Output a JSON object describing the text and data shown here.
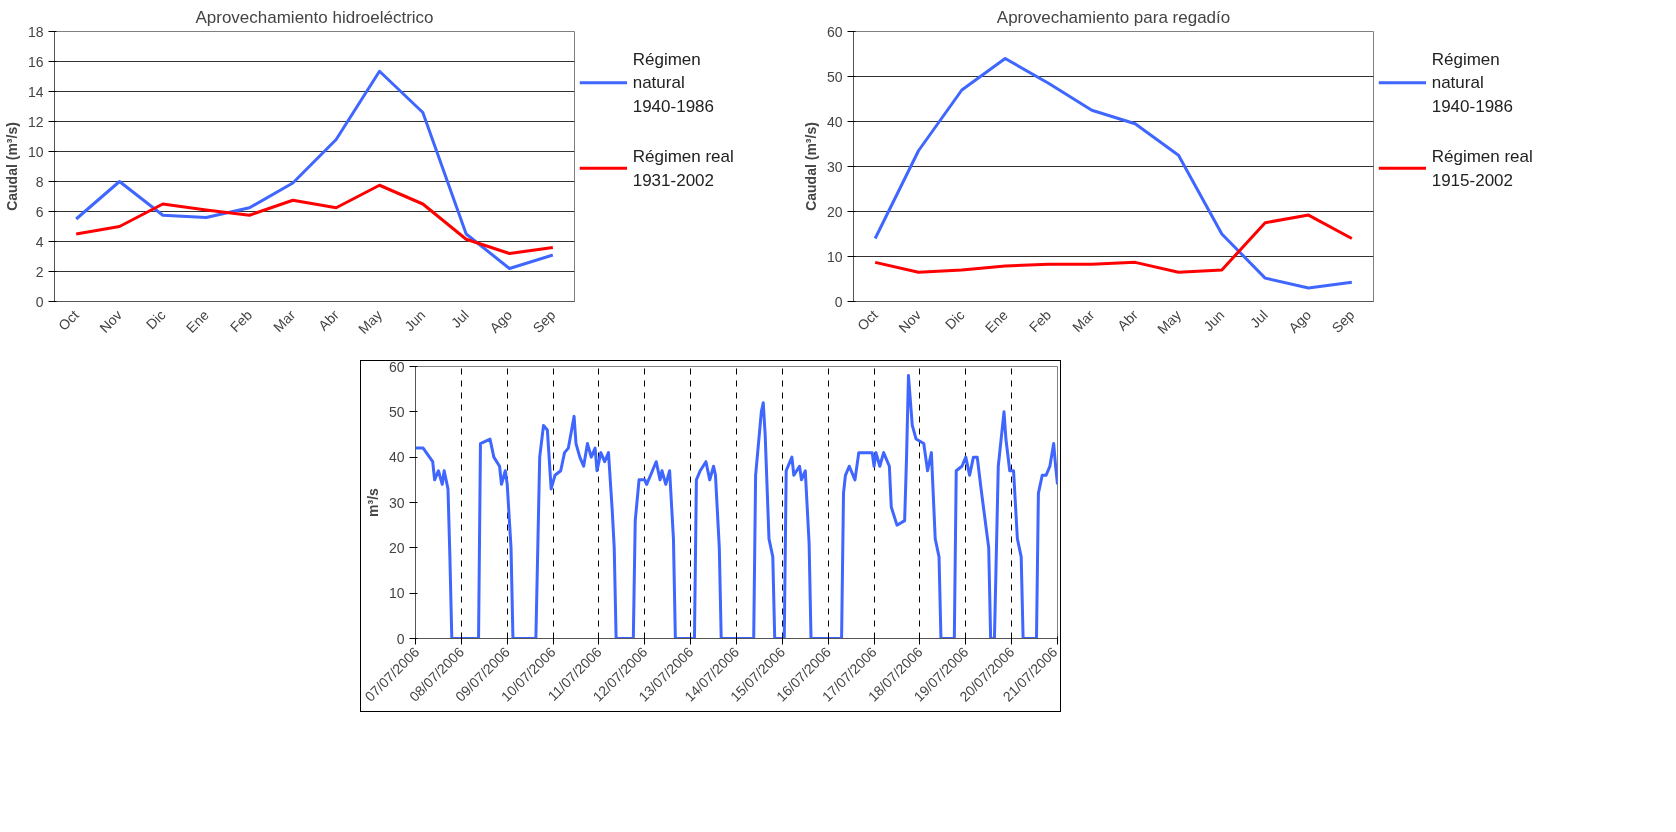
{
  "chart_data": [
    {
      "type": "line",
      "title": "Aprovechamiento hidroeléctrico",
      "ylabel": "Caudal (m³/s)",
      "categories": [
        "Oct",
        "Nov",
        "Dic",
        "Ene",
        "Feb",
        "Mar",
        "Abr",
        "May",
        "Jun",
        "Jul",
        "Ago",
        "Sep"
      ],
      "ylim": [
        0,
        18
      ],
      "yticks": [
        0,
        2,
        4,
        6,
        8,
        10,
        12,
        14,
        16,
        18
      ],
      "grid": "y",
      "legend": "right",
      "marker": "none",
      "line_style": "solid",
      "series": [
        {
          "name": "Régimen natural 1940-1986",
          "color": "#3f66ff",
          "values": [
            5.5,
            8.0,
            5.75,
            5.6,
            6.25,
            7.9,
            10.8,
            15.35,
            12.6,
            4.5,
            2.2,
            3.1
          ]
        },
        {
          "name": "Régimen real 1931-2002",
          "color": "#ff0000",
          "values": [
            4.5,
            5.0,
            6.5,
            6.1,
            5.75,
            6.75,
            6.25,
            7.75,
            6.5,
            4.15,
            3.2,
            3.6
          ]
        }
      ]
    },
    {
      "type": "line",
      "title": "Aprovechamiento para regadío",
      "ylabel": "Caudal (m³/s)",
      "categories": [
        "Oct",
        "Nov",
        "Dic",
        "Ene",
        "Feb",
        "Mar",
        "Abr",
        "May",
        "Jun",
        "Jul",
        "Ago",
        "Sep"
      ],
      "ylim": [
        0,
        60
      ],
      "yticks": [
        0,
        10,
        20,
        30,
        40,
        50,
        60
      ],
      "grid": "y",
      "legend": "right",
      "marker": "none",
      "line_style": "solid",
      "series": [
        {
          "name": "Régimen natural 1940-1986",
          "color": "#3f66ff",
          "values": [
            14,
            33.5,
            47,
            54,
            48.5,
            42.5,
            39.5,
            32.5,
            15,
            5.2,
            3,
            4.3
          ]
        },
        {
          "name": "Régimen real 1915-2002",
          "color": "#ff0000",
          "values": [
            8.7,
            6.5,
            7,
            7.9,
            8.3,
            8.3,
            8.7,
            6.5,
            7,
            17.5,
            19.2,
            14
          ]
        }
      ]
    },
    {
      "type": "line",
      "ylabel": "m³/s",
      "xlim": [
        "2006-07-07",
        "2006-07-21"
      ],
      "ylim": [
        0,
        60
      ],
      "yticks": [
        0,
        10,
        20,
        30,
        40,
        50,
        60
      ],
      "grid": "x",
      "legend": false,
      "marker": "none",
      "line_style": "solid",
      "xticks": [
        {
          "value": "2006-07-07",
          "label": "07/07/2006"
        },
        {
          "value": "2006-07-08",
          "label": "08/07/2006"
        },
        {
          "value": "2006-07-09",
          "label": "09/07/2006"
        },
        {
          "value": "2006-07-10",
          "label": "10/07/2006"
        },
        {
          "value": "2006-07-11",
          "label": "11/07/2006"
        },
        {
          "value": "2006-07-12",
          "label": "12/07/2006"
        },
        {
          "value": "2006-07-13",
          "label": "13/07/2006"
        },
        {
          "value": "2006-07-14",
          "label": "14/07/2006"
        },
        {
          "value": "2006-07-15",
          "label": "15/07/2006"
        },
        {
          "value": "2006-07-16",
          "label": "16/07/2006"
        },
        {
          "value": "2006-07-17",
          "label": "17/07/2006"
        },
        {
          "value": "2006-07-18",
          "label": "18/07/2006"
        },
        {
          "value": "2006-07-19",
          "label": "19/07/2006"
        },
        {
          "value": "2006-07-20",
          "label": "20/07/2006"
        },
        {
          "value": "2006-07-21",
          "label": "21/07/2006"
        }
      ],
      "series": [
        {
          "color": "#3f66ff",
          "x": [
            "2006-07-07T00:00",
            "2006-07-07T04:00",
            "2006-07-07T09:00",
            "2006-07-07T10:00",
            "2006-07-07T12:00",
            "2006-07-07T14:00",
            "2006-07-07T15:00",
            "2006-07-07T17:00",
            "2006-07-07T18:00",
            "2006-07-07T19:00",
            "2006-07-08T09:00",
            "2006-07-08T10:00",
            "2006-07-08T15:00",
            "2006-07-08T17:00",
            "2006-07-08T20:00",
            "2006-07-08T21:00",
            "2006-07-08T23:00",
            "2006-07-09T00:00",
            "2006-07-09T02:00",
            "2006-07-09T03:00",
            "2006-07-09T15:00",
            "2006-07-09T17:00",
            "2006-07-09T19:00",
            "2006-07-09T21:00",
            "2006-07-09T23:00",
            "2006-07-10T01:00",
            "2006-07-10T04:00",
            "2006-07-10T06:00",
            "2006-07-10T08:00",
            "2006-07-10T11:00",
            "2006-07-10T12:00",
            "2006-07-10T14:00",
            "2006-07-10T16:00",
            "2006-07-10T18:00",
            "2006-07-10T20:00",
            "2006-07-10T22:00",
            "2006-07-10T23:00",
            "2006-07-11T01:00",
            "2006-07-11T03:00",
            "2006-07-11T05:00",
            "2006-07-11T07:00",
            "2006-07-11T08:00",
            "2006-07-11T09:00",
            "2006-07-11T18:00",
            "2006-07-11T19:00",
            "2006-07-11T21:00",
            "2006-07-12T00:00",
            "2006-07-12T01:00",
            "2006-07-12T04:00",
            "2006-07-12T06:00",
            "2006-07-12T08:00",
            "2006-07-12T09:00",
            "2006-07-12T11:00",
            "2006-07-12T13:00",
            "2006-07-12T15:00",
            "2006-07-12T16:00",
            "2006-07-13T02:00",
            "2006-07-13T03:00",
            "2006-07-13T05:00",
            "2006-07-13T08:00",
            "2006-07-13T10:00",
            "2006-07-13T12:00",
            "2006-07-13T13:00",
            "2006-07-13T15:00",
            "2006-07-13T16:00",
            "2006-07-14T09:00",
            "2006-07-14T10:00",
            "2006-07-14T13:00",
            "2006-07-14T14:00",
            "2006-07-14T15:00",
            "2006-07-14T17:00",
            "2006-07-14T19:00",
            "2006-07-14T20:00",
            "2006-07-15T01:00",
            "2006-07-15T02:00",
            "2006-07-15T05:00",
            "2006-07-15T06:00",
            "2006-07-15T09:00",
            "2006-07-15T10:00",
            "2006-07-15T12:00",
            "2006-07-15T14:00",
            "2006-07-15T15:00",
            "2006-07-16T07:00",
            "2006-07-16T08:00",
            "2006-07-16T09:00",
            "2006-07-16T11:00",
            "2006-07-16T14:00",
            "2006-07-16T16:00",
            "2006-07-16T20:00",
            "2006-07-16T23:00",
            "2006-07-17T00:00",
            "2006-07-17T01:00",
            "2006-07-17T03:00",
            "2006-07-17T05:00",
            "2006-07-17T08:00",
            "2006-07-17T09:00",
            "2006-07-17T12:00",
            "2006-07-17T16:00",
            "2006-07-17T17:00",
            "2006-07-17T18:00",
            "2006-07-17T20:00",
            "2006-07-17T22:00",
            "2006-07-18T02:00",
            "2006-07-18T04:00",
            "2006-07-18T06:00",
            "2006-07-18T08:00",
            "2006-07-18T10:00",
            "2006-07-18T11:00",
            "2006-07-18T18:00",
            "2006-07-18T19:00",
            "2006-07-18T22:00",
            "2006-07-19T00:00",
            "2006-07-19T02:00",
            "2006-07-19T04:00",
            "2006-07-19T06:00",
            "2006-07-19T08:00",
            "2006-07-19T12:00",
            "2006-07-19T13:00",
            "2006-07-19T15:00",
            "2006-07-19T17:00",
            "2006-07-19T20:00",
            "2006-07-19T21:00",
            "2006-07-19T23:00",
            "2006-07-20T01:00",
            "2006-07-20T03:00",
            "2006-07-20T05:00",
            "2006-07-20T06:00",
            "2006-07-20T13:00",
            "2006-07-20T14:00",
            "2006-07-20T16:00",
            "2006-07-20T18:00",
            "2006-07-20T20:00",
            "2006-07-20T22:00",
            "2006-07-20T23:00",
            "2006-07-21T00:00"
          ],
          "values": [
            42,
            42,
            39,
            35,
            37,
            34,
            37,
            33,
            18,
            0,
            0,
            43,
            44,
            40,
            38,
            34,
            37,
            34,
            20,
            0,
            0,
            40,
            47,
            46,
            33,
            36,
            37,
            41,
            42,
            49,
            43,
            40,
            38,
            43,
            40,
            42,
            37,
            41,
            39,
            41,
            28,
            20,
            0,
            0,
            26,
            35,
            35,
            34,
            37,
            39,
            35,
            37,
            34,
            37,
            22,
            0,
            0,
            35,
            37,
            39,
            35,
            38,
            36,
            20,
            0,
            0,
            36,
            50,
            52,
            45,
            22,
            18,
            0,
            0,
            37,
            40,
            36,
            38,
            35,
            37,
            21,
            0,
            0,
            32,
            36,
            38,
            35,
            41,
            41,
            41,
            38,
            41,
            38,
            41,
            38,
            29,
            25,
            26,
            40,
            58,
            47,
            44,
            43,
            37,
            41,
            22,
            18,
            0,
            0,
            37,
            38,
            40,
            36,
            40,
            40,
            33,
            20,
            0,
            0,
            38,
            50,
            44,
            37,
            37,
            22,
            18,
            0,
            0,
            32,
            36,
            36,
            38,
            43,
            38,
            34
          ]
        }
      ]
    }
  ]
}
